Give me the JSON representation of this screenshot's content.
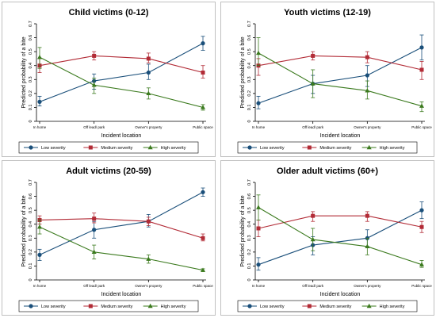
{
  "chart_data": [
    {
      "type": "line",
      "title": "Child victims (0-12)",
      "xlabel": "Incident location",
      "ylabel": "Predicted probability of a bite",
      "categories": [
        "In home",
        "Off lead/ park",
        "Owner's property",
        "Public space"
      ],
      "yticks": [
        "0",
        "0.1",
        "0.2",
        "0.3",
        "0.4",
        "0.5",
        "0.6",
        "0.7"
      ],
      "ylim": [
        0,
        0.7
      ],
      "legend_position": "bottom",
      "grid": false,
      "series": [
        {
          "name": "Low severity",
          "values": [
            0.14,
            0.29,
            0.35,
            0.56
          ],
          "ci_low": [
            0.11,
            0.23,
            0.3,
            0.51
          ],
          "ci_high": [
            0.18,
            0.34,
            0.41,
            0.61
          ]
        },
        {
          "name": "Medium severity",
          "values": [
            0.4,
            0.47,
            0.45,
            0.35
          ],
          "ci_low": [
            0.35,
            0.44,
            0.42,
            0.31
          ],
          "ci_high": [
            0.45,
            0.5,
            0.49,
            0.4
          ]
        },
        {
          "name": "High severity",
          "values": [
            0.46,
            0.26,
            0.2,
            0.1
          ],
          "ci_low": [
            0.38,
            0.2,
            0.16,
            0.08
          ],
          "ci_high": [
            0.53,
            0.31,
            0.24,
            0.12
          ]
        }
      ]
    },
    {
      "type": "line",
      "title": "Youth victims (12-19)",
      "xlabel": "Incident location",
      "ylabel": "Predicted probability of a bite",
      "categories": [
        "In home",
        "Off lead/ park",
        "Owner's property",
        "Public space"
      ],
      "yticks": [
        "0",
        "0.1",
        "0.2",
        "0.3",
        "0.4",
        "0.5",
        "0.6",
        "0.7"
      ],
      "ylim": [
        0,
        0.7
      ],
      "legend_position": "bottom",
      "grid": false,
      "series": [
        {
          "name": "Low severity",
          "values": [
            0.13,
            0.27,
            0.33,
            0.53
          ],
          "ci_low": [
            0.09,
            0.2,
            0.25,
            0.44
          ],
          "ci_high": [
            0.18,
            0.33,
            0.4,
            0.62
          ]
        },
        {
          "name": "Medium severity",
          "values": [
            0.4,
            0.47,
            0.46,
            0.37
          ],
          "ci_low": [
            0.33,
            0.44,
            0.42,
            0.3
          ],
          "ci_high": [
            0.45,
            0.5,
            0.5,
            0.43
          ]
        },
        {
          "name": "High severity",
          "values": [
            0.49,
            0.27,
            0.22,
            0.11
          ],
          "ci_low": [
            0.4,
            0.17,
            0.16,
            0.07
          ],
          "ci_high": [
            0.6,
            0.37,
            0.29,
            0.14
          ]
        }
      ]
    },
    {
      "type": "line",
      "title": "Adult victims (20-59)",
      "xlabel": "Incident location",
      "ylabel": "Predicted probability of a bite",
      "categories": [
        "In home",
        "Off lead/ park",
        "Owner's property",
        "Public space"
      ],
      "yticks": [
        "0",
        "0.1",
        "0.2",
        "0.3",
        "0.4",
        "0.5",
        "0.6",
        "0.7"
      ],
      "ylim": [
        0,
        0.7
      ],
      "legend_position": "bottom",
      "grid": false,
      "series": [
        {
          "name": "Low severity",
          "values": [
            0.18,
            0.36,
            0.42,
            0.63
          ],
          "ci_low": [
            0.14,
            0.3,
            0.38,
            0.6
          ],
          "ci_high": [
            0.22,
            0.42,
            0.47,
            0.66
          ]
        },
        {
          "name": "Medium severity",
          "values": [
            0.43,
            0.44,
            0.42,
            0.3
          ],
          "ci_low": [
            0.4,
            0.41,
            0.39,
            0.28
          ],
          "ci_high": [
            0.46,
            0.48,
            0.45,
            0.33
          ]
        },
        {
          "name": "High severity",
          "values": [
            0.38,
            0.2,
            0.15,
            0.07
          ],
          "ci_low": [
            0.33,
            0.15,
            0.12,
            0.06
          ],
          "ci_high": [
            0.43,
            0.25,
            0.18,
            0.08
          ]
        }
      ]
    },
    {
      "type": "line",
      "title": "Older adult victims (60+)",
      "xlabel": "Incident location",
      "ylabel": "Predicted probability of a bite",
      "categories": [
        "In home",
        "Off lead/ park",
        "Owner's property",
        "Public space"
      ],
      "yticks": [
        "0",
        "0.1",
        "0.2",
        "0.3",
        "0.4",
        "0.5",
        "0.6",
        "0.7"
      ],
      "ylim": [
        0,
        0.7
      ],
      "legend_position": "bottom",
      "grid": false,
      "series": [
        {
          "name": "Low severity",
          "values": [
            0.11,
            0.25,
            0.3,
            0.5
          ],
          "ci_low": [
            0.07,
            0.18,
            0.24,
            0.44
          ],
          "ci_high": [
            0.16,
            0.31,
            0.36,
            0.56
          ]
        },
        {
          "name": "Medium severity",
          "values": [
            0.37,
            0.46,
            0.46,
            0.38
          ],
          "ci_low": [
            0.31,
            0.42,
            0.42,
            0.34
          ],
          "ci_high": [
            0.43,
            0.49,
            0.49,
            0.42
          ]
        },
        {
          "name": "High severity",
          "values": [
            0.52,
            0.29,
            0.24,
            0.11
          ],
          "ci_low": [
            0.43,
            0.21,
            0.18,
            0.09
          ],
          "ci_high": [
            0.61,
            0.37,
            0.3,
            0.14
          ]
        }
      ]
    }
  ],
  "series_styles": {
    "Low severity": {
      "color": "#1a4f7a",
      "marker": "circle"
    },
    "Medium severity": {
      "color": "#b22b36",
      "marker": "square"
    },
    "High severity": {
      "color": "#3b7a1e",
      "marker": "triangle"
    }
  },
  "colors": {
    "panel_bg": "#ffffff",
    "plot_bg": "#ffffff",
    "border": "#c0c0c0",
    "axis": "#000000",
    "text": "#000000"
  }
}
